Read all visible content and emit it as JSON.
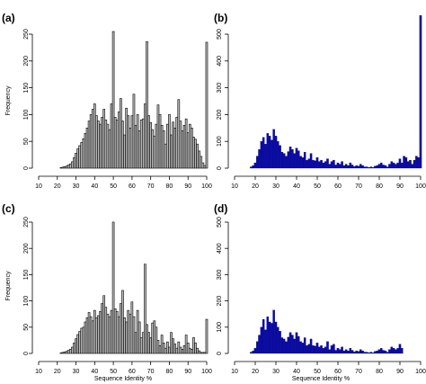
{
  "colors": {
    "gray_bar": "#bdbdbd",
    "blue_bar": "#0a0aa8",
    "outline": "#000000"
  },
  "chart_data": [
    {
      "panel": "(a)",
      "type": "bar",
      "xlabel": "",
      "ylabel": "Frequency",
      "xlim": [
        10,
        100
      ],
      "ylim": [
        0,
        250
      ],
      "xticks": [
        10,
        20,
        30,
        40,
        50,
        60,
        70,
        80,
        90,
        100
      ],
      "yticks": [
        0,
        50,
        100,
        150,
        200,
        250
      ],
      "bins_x": [
        22,
        23,
        24,
        25,
        26,
        27,
        28,
        29,
        30,
        31,
        32,
        33,
        34,
        35,
        36,
        37,
        38,
        39,
        40,
        41,
        42,
        43,
        44,
        45,
        46,
        47,
        48,
        49,
        50,
        51,
        52,
        53,
        54,
        55,
        56,
        57,
        58,
        59,
        60,
        61,
        62,
        63,
        64,
        65,
        66,
        67,
        68,
        69,
        70,
        71,
        72,
        73,
        74,
        75,
        76,
        77,
        78,
        79,
        80,
        81,
        82,
        83,
        84,
        85,
        86,
        87,
        88,
        89,
        90,
        91,
        92,
        93,
        94,
        95,
        96,
        97,
        98,
        99,
        100
      ],
      "values": [
        1,
        2,
        3,
        4,
        6,
        8,
        12,
        20,
        28,
        36,
        42,
        48,
        55,
        65,
        75,
        88,
        100,
        110,
        120,
        98,
        88,
        82,
        95,
        110,
        90,
        82,
        72,
        120,
        255,
        95,
        90,
        105,
        130,
        88,
        62,
        112,
        98,
        75,
        98,
        138,
        80,
        100,
        70,
        90,
        92,
        120,
        236,
        98,
        85,
        72,
        60,
        82,
        118,
        100,
        80,
        70,
        45,
        82,
        100,
        62,
        86,
        75,
        95,
        128,
        88,
        70,
        80,
        92,
        66,
        82,
        75,
        58,
        54,
        45,
        32,
        22,
        10,
        5,
        235
      ]
    },
    {
      "panel": "(b)",
      "type": "bar",
      "xlabel": "",
      "ylabel": "",
      "xlim": [
        10,
        100
      ],
      "ylim": [
        0,
        500
      ],
      "xticks": [
        10,
        20,
        30,
        40,
        50,
        60,
        70,
        80,
        90,
        100
      ],
      "yticks": [
        0,
        100,
        200,
        300,
        400,
        500
      ],
      "bins_x": [
        18,
        19,
        20,
        21,
        22,
        23,
        24,
        25,
        26,
        27,
        28,
        29,
        30,
        31,
        32,
        33,
        34,
        35,
        36,
        37,
        38,
        39,
        40,
        41,
        42,
        43,
        44,
        45,
        46,
        47,
        48,
        49,
        50,
        51,
        52,
        53,
        54,
        55,
        56,
        57,
        58,
        59,
        60,
        61,
        62,
        63,
        64,
        65,
        66,
        67,
        68,
        69,
        70,
        71,
        72,
        73,
        74,
        75,
        76,
        77,
        78,
        79,
        80,
        81,
        82,
        83,
        84,
        85,
        86,
        87,
        88,
        89,
        90,
        91,
        92,
        93,
        94,
        95,
        96,
        97,
        98,
        99,
        100
      ],
      "values": [
        5,
        10,
        20,
        45,
        70,
        100,
        115,
        90,
        130,
        120,
        105,
        145,
        120,
        100,
        85,
        60,
        55,
        45,
        62,
        80,
        70,
        55,
        75,
        65,
        45,
        40,
        60,
        30,
        35,
        55,
        30,
        28,
        40,
        25,
        30,
        20,
        25,
        35,
        15,
        25,
        30,
        12,
        20,
        15,
        25,
        10,
        15,
        10,
        20,
        12,
        6,
        10,
        8,
        15,
        10,
        5,
        5,
        3,
        5,
        3,
        8,
        10,
        15,
        20,
        12,
        10,
        5,
        15,
        25,
        20,
        15,
        20,
        35,
        20,
        45,
        40,
        25,
        30,
        15,
        30,
        45,
        40,
        570
      ]
    },
    {
      "panel": "(c)",
      "type": "bar",
      "xlabel": "Sequence Identity %",
      "ylabel": "Frequency",
      "xlim": [
        10,
        100
      ],
      "ylim": [
        0,
        250
      ],
      "xticks": [
        10,
        20,
        30,
        40,
        50,
        60,
        70,
        80,
        90,
        100
      ],
      "yticks": [
        0,
        50,
        100,
        150,
        200,
        250
      ],
      "bins_x": [
        22,
        23,
        24,
        25,
        26,
        27,
        28,
        29,
        30,
        31,
        32,
        33,
        34,
        35,
        36,
        37,
        38,
        39,
        40,
        41,
        42,
        43,
        44,
        45,
        46,
        47,
        48,
        49,
        50,
        51,
        52,
        53,
        54,
        55,
        56,
        57,
        58,
        59,
        60,
        61,
        62,
        63,
        64,
        65,
        66,
        67,
        68,
        69,
        70,
        71,
        72,
        73,
        74,
        75,
        76,
        77,
        78,
        79,
        80,
        81,
        82,
        83,
        84,
        85,
        86,
        87,
        88,
        89,
        90,
        91,
        92,
        93,
        94,
        95,
        96,
        97,
        98,
        99,
        100
      ],
      "values": [
        1,
        2,
        3,
        4,
        6,
        8,
        12,
        20,
        28,
        36,
        42,
        48,
        50,
        60,
        68,
        78,
        70,
        62,
        82,
        68,
        72,
        80,
        95,
        110,
        88,
        75,
        70,
        82,
        250,
        85,
        80,
        70,
        95,
        120,
        68,
        60,
        82,
        75,
        98,
        70,
        40,
        82,
        60,
        30,
        40,
        170,
        55,
        40,
        30,
        58,
        62,
        50,
        25,
        15,
        35,
        20,
        10,
        22,
        12,
        40,
        28,
        18,
        10,
        22,
        12,
        8,
        15,
        35,
        20,
        10,
        8,
        30,
        20,
        10,
        5,
        2,
        2,
        2,
        65
      ]
    },
    {
      "panel": "(d)",
      "type": "bar",
      "xlabel": "Sequence Identity %",
      "ylabel": "",
      "xlim": [
        10,
        100
      ],
      "ylim": [
        0,
        500
      ],
      "xticks": [
        10,
        20,
        30,
        40,
        50,
        60,
        70,
        80,
        90,
        100
      ],
      "yticks": [
        0,
        100,
        200,
        300,
        400,
        500
      ],
      "bins_x": [
        18,
        19,
        20,
        21,
        22,
        23,
        24,
        25,
        26,
        27,
        28,
        29,
        30,
        31,
        32,
        33,
        34,
        35,
        36,
        37,
        38,
        39,
        40,
        41,
        42,
        43,
        44,
        45,
        46,
        47,
        48,
        49,
        50,
        51,
        52,
        53,
        54,
        55,
        56,
        57,
        58,
        59,
        60,
        61,
        62,
        63,
        64,
        65,
        66,
        67,
        68,
        69,
        70,
        71,
        72,
        73,
        74,
        75,
        76,
        77,
        78,
        79,
        80,
        81,
        82,
        83,
        84,
        85,
        86,
        87,
        88,
        89,
        90,
        91
      ],
      "values": [
        5,
        10,
        20,
        45,
        70,
        100,
        130,
        90,
        140,
        120,
        115,
        165,
        120,
        100,
        85,
        60,
        55,
        45,
        62,
        80,
        70,
        55,
        80,
        65,
        45,
        40,
        60,
        30,
        35,
        55,
        30,
        28,
        40,
        25,
        30,
        20,
        25,
        45,
        15,
        30,
        35,
        12,
        20,
        15,
        25,
        10,
        15,
        10,
        20,
        12,
        6,
        10,
        8,
        15,
        10,
        5,
        5,
        3,
        5,
        3,
        8,
        10,
        15,
        20,
        12,
        10,
        5,
        15,
        25,
        20,
        15,
        20,
        35,
        20
      ]
    }
  ]
}
